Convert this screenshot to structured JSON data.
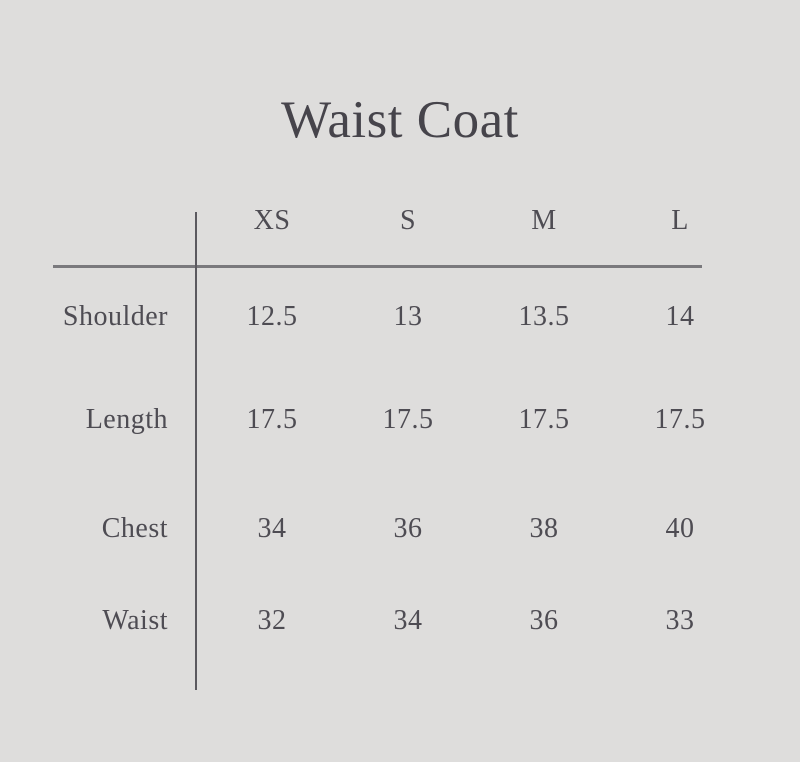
{
  "title": "Waist Coat",
  "colors": {
    "background": "#dedddc",
    "text": "#4e4c53",
    "title_text": "#46444b",
    "horizontal_rule": "#7a797d",
    "vertical_rule": "#5b595f"
  },
  "chart_data": {
    "type": "table",
    "title": "Waist Coat",
    "columns": [
      "XS",
      "S",
      "M",
      "L"
    ],
    "row_labels": [
      "Shoulder",
      "Length",
      "Chest",
      "Waist"
    ],
    "rows": [
      [
        "12.5",
        "13",
        "13.5",
        "14"
      ],
      [
        "17.5",
        "17.5",
        "17.5",
        "17.5"
      ],
      [
        "34",
        "36",
        "38",
        "40"
      ],
      [
        "32",
        "34",
        "36",
        "33"
      ]
    ],
    "layout": {
      "header_position": "top",
      "row_label_position": "left",
      "grid": "single horizontal rule under header, single vertical rule after row labels"
    }
  }
}
